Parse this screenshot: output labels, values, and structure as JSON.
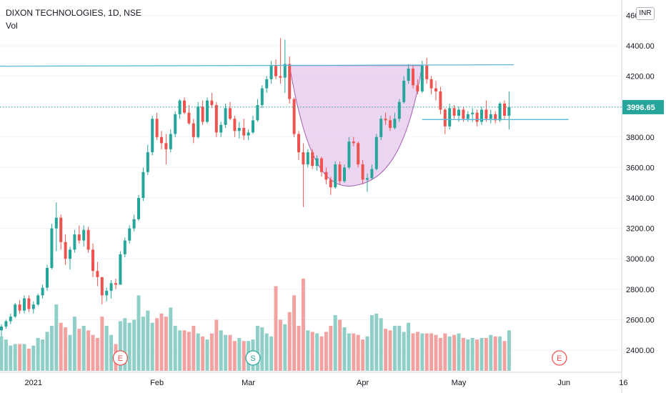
{
  "header": {
    "symbol_line": "DIXON TECHNOLOGIES, 1D, NSE",
    "indicator": "Vol",
    "currency": "INR"
  },
  "colors": {
    "up": "#26a69a",
    "down": "#ef5350",
    "vol_up": "#8fcfc7",
    "vol_down": "#f2a3a1",
    "trendline": "#5bb8d6",
    "cup_fill": "#e6c7ec",
    "cup_stroke": "#a25fb0",
    "price_label": "#26a69a"
  },
  "chart_data": {
    "type": "candlestick",
    "title": "DIXON TECHNOLOGIES, 1D, NSE",
    "ylim": [
      2300,
      4650
    ],
    "y_ticks": [
      "2400.00",
      "2600.00",
      "2800.00",
      "3000.00",
      "3200.00",
      "3400.00",
      "3600.00",
      "3800.00",
      "4000.00",
      "4200.00",
      "4400.00",
      "4600.00"
    ],
    "x_labels": [
      "2021",
      "Feb",
      "Mar",
      "Apr",
      "May",
      "Jun",
      "16"
    ],
    "x_label_index": [
      7,
      34,
      54,
      79,
      100,
      123,
      136
    ],
    "last_price": "3996.65",
    "candles": [
      [
        2530,
        2570,
        2490,
        2555
      ],
      [
        2555,
        2600,
        2540,
        2590
      ],
      [
        2590,
        2640,
        2570,
        2620
      ],
      [
        2620,
        2710,
        2610,
        2700
      ],
      [
        2700,
        2730,
        2640,
        2660
      ],
      [
        2660,
        2760,
        2640,
        2740
      ],
      [
        2740,
        2760,
        2650,
        2670
      ],
      [
        2670,
        2720,
        2640,
        2700
      ],
      [
        2700,
        2770,
        2690,
        2760
      ],
      [
        2760,
        2830,
        2740,
        2810
      ],
      [
        2810,
        2960,
        2790,
        2940
      ],
      [
        2940,
        3230,
        2930,
        3200
      ],
      [
        3200,
        3370,
        3050,
        3270
      ],
      [
        3270,
        3290,
        3060,
        3110
      ],
      [
        3110,
        3160,
        2960,
        3000
      ],
      [
        3000,
        3080,
        2930,
        3060
      ],
      [
        3060,
        3190,
        3040,
        3160
      ],
      [
        3160,
        3220,
        3100,
        3120
      ],
      [
        3120,
        3220,
        3080,
        3190
      ],
      [
        3190,
        3210,
        3040,
        3060
      ],
      [
        3060,
        3100,
        2880,
        2920
      ],
      [
        2920,
        2980,
        2820,
        2880
      ],
      [
        2880,
        2880,
        2700,
        2760
      ],
      [
        2760,
        2810,
        2720,
        2790
      ],
      [
        2790,
        2860,
        2740,
        2840
      ],
      [
        2840,
        2870,
        2800,
        2830
      ],
      [
        2830,
        3050,
        2830,
        3030
      ],
      [
        3030,
        3140,
        3010,
        3120
      ],
      [
        3120,
        3220,
        3100,
        3200
      ],
      [
        3200,
        3290,
        3180,
        3260
      ],
      [
        3260,
        3420,
        3250,
        3400
      ],
      [
        3400,
        3600,
        3380,
        3570
      ],
      [
        3570,
        3750,
        3550,
        3700
      ],
      [
        3700,
        3940,
        3680,
        3920
      ],
      [
        3920,
        3960,
        3780,
        3800
      ],
      [
        3800,
        3840,
        3720,
        3760
      ],
      [
        3760,
        3820,
        3620,
        3720
      ],
      [
        3720,
        3850,
        3700,
        3820
      ],
      [
        3820,
        3970,
        3800,
        3950
      ],
      [
        3950,
        4050,
        3920,
        4040
      ],
      [
        4040,
        4060,
        3950,
        3960
      ],
      [
        3960,
        4010,
        3880,
        3890
      ],
      [
        3890,
        3920,
        3760,
        3800
      ],
      [
        3800,
        4030,
        3790,
        4000
      ],
      [
        4000,
        4040,
        3880,
        3900
      ],
      [
        3900,
        4060,
        3890,
        4040
      ],
      [
        4040,
        4090,
        3990,
        4010
      ],
      [
        4010,
        4030,
        3800,
        3830
      ],
      [
        3830,
        3900,
        3800,
        3880
      ],
      [
        3880,
        4020,
        3860,
        3990
      ],
      [
        3990,
        4030,
        3910,
        3920
      ],
      [
        3920,
        3940,
        3800,
        3840
      ],
      [
        3840,
        3900,
        3790,
        3860
      ],
      [
        3860,
        3920,
        3780,
        3810
      ],
      [
        3810,
        3850,
        3780,
        3830
      ],
      [
        3830,
        3940,
        3820,
        3910
      ],
      [
        3910,
        4050,
        3900,
        4010
      ],
      [
        4010,
        4140,
        3990,
        4120
      ],
      [
        4120,
        4200,
        4090,
        4180
      ],
      [
        4180,
        4300,
        4150,
        4270
      ],
      [
        4270,
        4310,
        4180,
        4200
      ],
      [
        4200,
        4450,
        4150,
        4190
      ],
      [
        4190,
        4440,
        4090,
        4280
      ],
      [
        4280,
        4330,
        4020,
        4050
      ],
      [
        4050,
        4060,
        3800,
        3820
      ],
      [
        3820,
        3840,
        3650,
        3700
      ],
      [
        3700,
        3760,
        3340,
        3620
      ],
      [
        3620,
        3720,
        3600,
        3700
      ],
      [
        3700,
        3720,
        3590,
        3610
      ],
      [
        3610,
        3680,
        3580,
        3660
      ],
      [
        3660,
        3670,
        3540,
        3570
      ],
      [
        3570,
        3600,
        3490,
        3520
      ],
      [
        3520,
        3540,
        3420,
        3470
      ],
      [
        3470,
        3640,
        3460,
        3620
      ],
      [
        3620,
        3640,
        3490,
        3510
      ],
      [
        3510,
        3620,
        3500,
        3600
      ],
      [
        3600,
        3800,
        3590,
        3770
      ],
      [
        3770,
        3800,
        3740,
        3760
      ],
      [
        3760,
        3770,
        3600,
        3620
      ],
      [
        3620,
        3650,
        3490,
        3520
      ],
      [
        3520,
        3560,
        3440,
        3530
      ],
      [
        3530,
        3620,
        3520,
        3590
      ],
      [
        3590,
        3820,
        3580,
        3800
      ],
      [
        3800,
        3940,
        3780,
        3920
      ],
      [
        3920,
        3960,
        3880,
        3910
      ],
      [
        3910,
        3940,
        3840,
        3860
      ],
      [
        3860,
        3960,
        3850,
        3920
      ],
      [
        3920,
        4050,
        3900,
        4030
      ],
      [
        4030,
        4200,
        4020,
        4170
      ],
      [
        4170,
        4280,
        4150,
        4250
      ],
      [
        4250,
        4270,
        4120,
        4140
      ],
      [
        4140,
        4180,
        4080,
        4100
      ],
      [
        4100,
        4300,
        4090,
        4270
      ],
      [
        4270,
        4320,
        4150,
        4180
      ],
      [
        4180,
        4200,
        4080,
        4120
      ],
      [
        4120,
        4170,
        4040,
        4100
      ],
      [
        4100,
        4130,
        3950,
        3980
      ],
      [
        3980,
        3990,
        3820,
        3870
      ],
      [
        3870,
        4020,
        3850,
        3990
      ],
      [
        3990,
        4010,
        3920,
        3940
      ],
      [
        3940,
        4000,
        3900,
        3980
      ],
      [
        3980,
        4000,
        3900,
        3920
      ],
      [
        3920,
        3970,
        3900,
        3950
      ],
      [
        3950,
        3990,
        3900,
        3960
      ],
      [
        3960,
        3980,
        3870,
        3900
      ],
      [
        3900,
        4000,
        3880,
        3980
      ],
      [
        3980,
        4040,
        3900,
        3920
      ],
      [
        3920,
        3980,
        3890,
        3950
      ],
      [
        3950,
        3970,
        3890,
        3910
      ],
      [
        3910,
        4030,
        3900,
        4020
      ],
      [
        4020,
        4040,
        3920,
        3940
      ],
      [
        3940,
        4100,
        3850,
        3997
      ]
    ],
    "volume": [
      2490,
      2470,
      2430,
      2440,
      2440,
      2440,
      2410,
      2430,
      2480,
      2470,
      2520,
      2560,
      2700,
      2580,
      2550,
      2500,
      2620,
      2540,
      2560,
      2530,
      2500,
      2480,
      2620,
      2560,
      2500,
      2440,
      2590,
      2610,
      2580,
      2600,
      2760,
      2620,
      2660,
      2580,
      2610,
      2640,
      2620,
      2680,
      2560,
      2530,
      2530,
      2520,
      2560,
      2510,
      2490,
      2470,
      2510,
      2600,
      2530,
      2500,
      2500,
      2460,
      2480,
      2460,
      2460,
      2470,
      2560,
      2550,
      2510,
      2490,
      2820,
      2600,
      2570,
      2650,
      2760,
      2560,
      2870,
      2530,
      2520,
      2510,
      2490,
      2520,
      2560,
      2630,
      2600,
      2550,
      2510,
      2510,
      2500,
      2470,
      2490,
      2630,
      2640,
      2610,
      2540,
      2530,
      2560,
      2560,
      2520,
      2580,
      2510,
      2520,
      2510,
      2510,
      2510,
      2500,
      2480,
      2510,
      2490,
      2500,
      2510,
      2480,
      2470,
      2480,
      2470,
      2480,
      2480,
      2500,
      2490,
      2490,
      2460,
      2530
    ],
    "trendlines": [
      {
        "points": [
          [
            -6,
            4265
          ],
          [
            112,
            4275
          ]
        ]
      },
      {
        "points": [
          [
            92,
            3915
          ],
          [
            124,
            3915
          ]
        ]
      }
    ],
    "cup": {
      "rim_left": [
        63,
        4270
      ],
      "bottom": [
        77,
        3480
      ],
      "rim_right": [
        92,
        4270
      ]
    },
    "events": [
      {
        "label": "E",
        "index": 26
      },
      {
        "label": "S",
        "index": 55
      },
      {
        "label": "E",
        "index": 122
      }
    ]
  }
}
